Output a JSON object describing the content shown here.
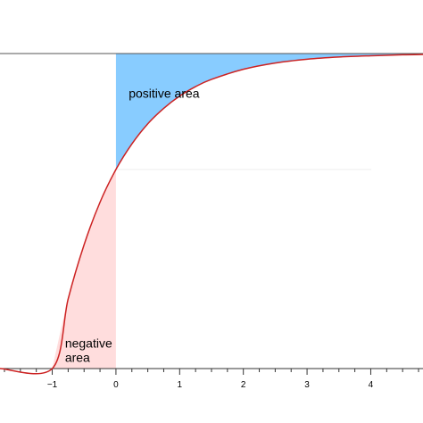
{
  "chart_data": {
    "type": "area",
    "title": "",
    "xlabel": "",
    "ylabel": "",
    "xlim": [
      -1.82,
      4.82
    ],
    "ylim": [
      0,
      1
    ],
    "grid": false,
    "x_ticks": [
      -1,
      0,
      1,
      2,
      3,
      4
    ],
    "x_tick_labels": [
      "−1",
      "0",
      "1",
      "2",
      "3",
      "4"
    ],
    "asymptote_y": 1,
    "curve": {
      "x": [
        -1.82,
        -1.0,
        -0.75,
        -0.5,
        -0.25,
        0,
        0.25,
        0.5,
        0.75,
        1.0,
        1.25,
        1.5,
        2.0,
        2.5,
        3.0,
        3.5,
        4.0,
        4.5,
        4.82
      ],
      "y": [
        0.0,
        0.0,
        0.221,
        0.393,
        0.528,
        0.632,
        0.713,
        0.777,
        0.826,
        0.865,
        0.895,
        0.918,
        0.95,
        0.97,
        0.982,
        0.989,
        0.993,
        0.996,
        0.997
      ]
    },
    "regions": [
      {
        "label": "positive area",
        "color": "#88ccff"
      },
      {
        "label": "negative area",
        "color": "#ffdddd"
      }
    ],
    "colors": {
      "curve": "#cc2222",
      "axis": "#333333",
      "asymptote": "#555555",
      "guide": "#eeeeee"
    }
  }
}
